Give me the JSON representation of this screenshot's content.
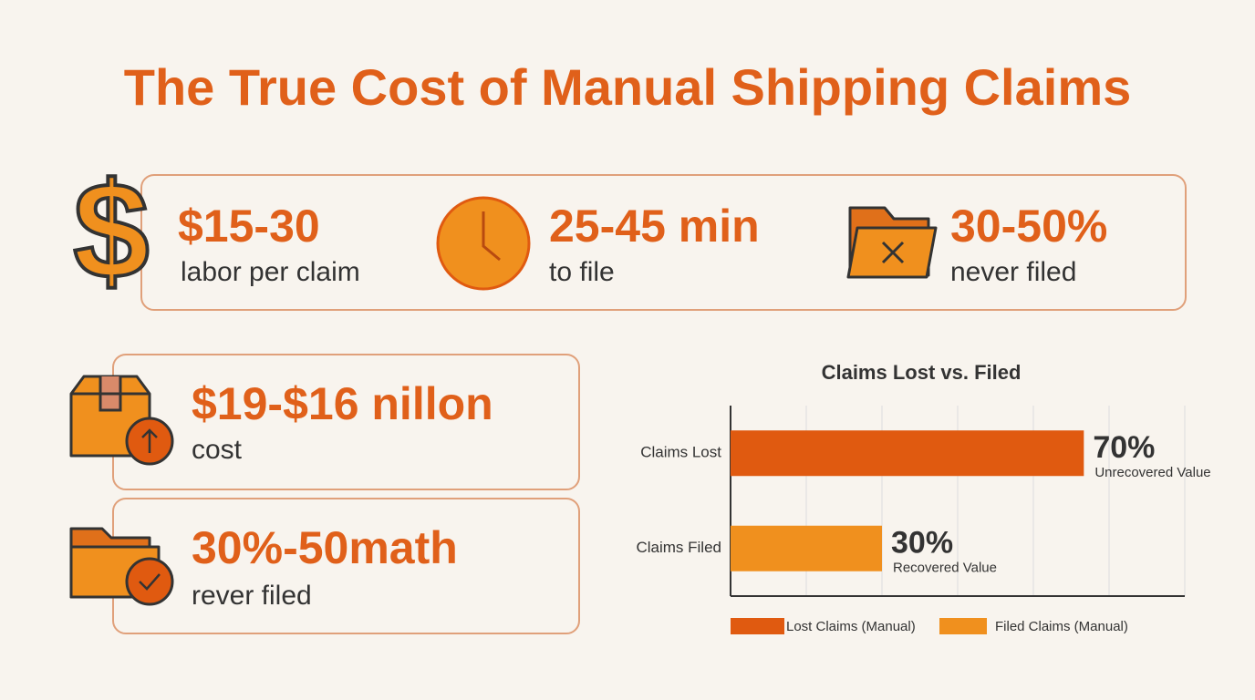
{
  "header": {
    "title": "The True Cost of Manual Shipping Claims"
  },
  "top_stats": [
    {
      "value": "$15-30",
      "label": "labor per claim"
    },
    {
      "value": "25-45 min",
      "label": "to file"
    },
    {
      "value": "30-50%",
      "label": "never filed"
    }
  ],
  "cards": [
    {
      "value": "$19-$16 nillon",
      "label": "cost"
    },
    {
      "value": "30%-50math",
      "label": "rever filed"
    }
  ],
  "chart_data": {
    "type": "hbar",
    "title": "Claims Lost vs. Filed",
    "categories": [
      "Claims Lost",
      "Claims Filed"
    ],
    "series": [
      {
        "name": "Lost Claims (Manual)",
        "color": "#e05a10",
        "values": [
          70,
          null
        ],
        "value_labels": [
          "70%",
          null
        ],
        "notes": [
          "Unrecovered Value",
          null
        ]
      },
      {
        "name": "Filed Claims (Manual)",
        "color": "#f0901e",
        "values": [
          null,
          30
        ],
        "value_labels": [
          null,
          "30%"
        ],
        "notes": [
          null,
          "Recovered Value"
        ]
      }
    ],
    "xlim": [
      0,
      90
    ],
    "xticks": [
      0,
      15,
      30,
      45,
      60,
      75,
      90
    ],
    "grid": true,
    "legend": "bottom"
  }
}
